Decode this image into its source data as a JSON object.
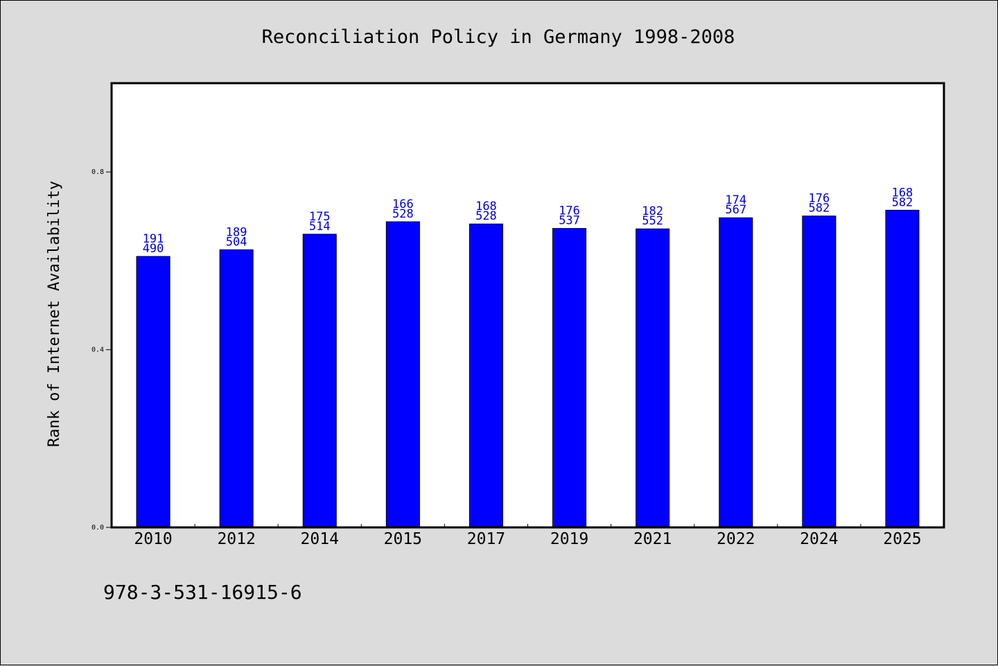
{
  "chart_data": {
    "type": "bar",
    "title": "Reconciliation Policy in Germany 1998-2008",
    "xlabel": "",
    "ylabel": "Rank of Internet Availability",
    "categories": [
      "2010",
      "2012",
      "2014",
      "2015",
      "2017",
      "2019",
      "2021",
      "2022",
      "2024",
      "2025"
    ],
    "values": [
      0.61,
      0.625,
      0.66,
      0.688,
      0.683,
      0.673,
      0.672,
      0.697,
      0.701,
      0.714
    ],
    "label_top": [
      "191",
      "189",
      "175",
      "166",
      "168",
      "176",
      "182",
      "174",
      "176",
      "168"
    ],
    "label_bottom": [
      "490",
      "504",
      "514",
      "528",
      "528",
      "537",
      "552",
      "567",
      "582",
      "582"
    ],
    "ylim": [
      0,
      1.0
    ],
    "yticks": [
      "0.0",
      "0.4",
      "0.8"
    ],
    "grid": false,
    "bar_color": "#0000ff",
    "label_color": "#0000cc",
    "plot_background": "#ffffff"
  },
  "footer": {
    "isbn": "978-3-531-16915-6"
  }
}
